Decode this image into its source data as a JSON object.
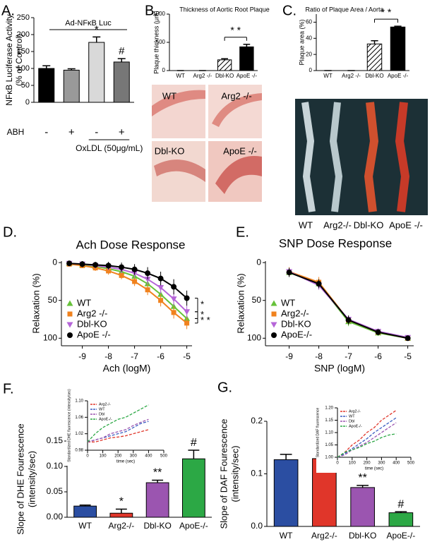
{
  "chart_data": [
    {
      "panel": "A.",
      "type": "bar",
      "title": "Ad-NFκB Luc",
      "ylabel": [
        "NFκB Luciferase Activity",
        "(% of Control)"
      ],
      "row_label": "ABH",
      "categories": [
        "-",
        "+",
        "-",
        "+"
      ],
      "group_label": "OxLDL (50μg/mL)",
      "values": [
        100,
        95,
        177,
        119
      ],
      "errors": [
        8,
        4,
        16,
        10
      ],
      "colors": [
        "#000000",
        "#999999",
        "#d9d9d9",
        "#777777"
      ],
      "annotations": [
        {
          "index": 2,
          "text": "*"
        },
        {
          "index": 3,
          "text": "#"
        }
      ],
      "ylim": [
        0,
        250
      ],
      "yticks": [
        0,
        50,
        100,
        150,
        200,
        250
      ]
    },
    {
      "panel": "B.",
      "type": "bar",
      "title": "Thickness of Aortic Root Plaque",
      "ylabel": [
        "Plaque thickness (μm)"
      ],
      "categories": [
        "WT",
        "Arg2 -/-",
        "Dbl-KO",
        "ApoE -/-"
      ],
      "values": [
        0,
        0,
        190,
        420
      ],
      "errors": [
        0,
        0,
        20,
        45
      ],
      "colors": [
        "#000000",
        "#000000",
        "#ffffff",
        "#000000"
      ],
      "hatch": [
        false,
        false,
        true,
        false
      ],
      "brackets": [
        {
          "from": 2,
          "to": 3,
          "text": "* *"
        }
      ],
      "ylim": [
        0,
        1000
      ],
      "yticks": [
        0,
        500,
        1000
      ],
      "image_labels": [
        "WT",
        "Arg2 -/-",
        "Dbl-KO",
        "ApoE -/-"
      ]
    },
    {
      "panel": "C.",
      "type": "bar",
      "title": "Ratio of Plaque Area / Aorta",
      "ylabel": [
        "Plaque area (%)"
      ],
      "categories": [
        "WT",
        "Arg2 -/-",
        "Dbl-KO",
        "ApoE -/-"
      ],
      "values": [
        0,
        0,
        33,
        54
      ],
      "errors": [
        0,
        0,
        4,
        1
      ],
      "colors": [
        "#000000",
        "#000000",
        "#ffffff",
        "#000000"
      ],
      "hatch": [
        false,
        false,
        true,
        false
      ],
      "brackets": [
        {
          "from": 2,
          "to": 3,
          "text": "* *"
        }
      ],
      "ylim": [
        0,
        70
      ],
      "yticks": [
        0,
        20,
        40,
        60
      ],
      "image_labels": [
        "WT",
        "Arg2-/-",
        "Dbl-KO",
        "ApoE -/-"
      ]
    },
    {
      "panel": "D.",
      "type": "line",
      "title": "Ach Dose Response",
      "xlabel": "Ach (logM)",
      "ylabel": [
        "Relaxation (%)"
      ],
      "x": [
        -9.5,
        -9,
        -8.5,
        -8,
        -7.5,
        -7,
        -6.5,
        -6,
        -5.5,
        -5
      ],
      "series": [
        {
          "name": "WT",
          "color": "#66c23a",
          "marker": "triangle-up",
          "values": [
            1,
            3,
            5,
            8,
            12,
            18,
            28,
            42,
            58,
            74
          ],
          "errors": [
            2,
            2,
            3,
            3,
            4,
            5,
            6,
            7,
            6,
            6
          ]
        },
        {
          "name": "Arg2 -/-",
          "color": "#f0821e",
          "marker": "square",
          "values": [
            2,
            4,
            7,
            11,
            17,
            25,
            36,
            50,
            66,
            80
          ],
          "errors": [
            2,
            3,
            4,
            5,
            5,
            6,
            7,
            8,
            8,
            8
          ]
        },
        {
          "name": "Dbl-KO",
          "color": "#b565d8",
          "marker": "triangle-down",
          "values": [
            1,
            2,
            4,
            6,
            9,
            14,
            22,
            33,
            48,
            65
          ],
          "errors": [
            2,
            3,
            3,
            4,
            5,
            6,
            7,
            8,
            9,
            8
          ]
        },
        {
          "name": "ApoE -/-",
          "color": "#000000",
          "marker": "circle",
          "values": [
            1,
            2,
            3,
            4,
            6,
            9,
            14,
            21,
            32,
            47
          ],
          "errors": [
            3,
            4,
            4,
            5,
            6,
            7,
            8,
            9,
            10,
            10
          ]
        }
      ],
      "significance": [
        "*",
        "*",
        "* *"
      ],
      "xlim": [
        -9.8,
        -4.8
      ],
      "xticks": [
        -9,
        -8,
        -7,
        -6,
        -5
      ],
      "ylim": [
        110,
        -2
      ],
      "yticks": [
        0,
        50,
        100
      ],
      "legend": "lower left"
    },
    {
      "panel": "E.",
      "type": "line",
      "title": "SNP Dose Response",
      "xlabel": "SNP (logM)",
      "ylabel": [
        "Relaxation (%)"
      ],
      "x": [
        -9,
        -8,
        -7,
        -6,
        -5
      ],
      "series": [
        {
          "name": "WT",
          "color": "#66c23a",
          "marker": "triangle-up",
          "values": [
            13,
            28,
            78,
            93,
            100
          ],
          "errors": [
            6,
            6,
            6,
            4,
            3
          ]
        },
        {
          "name": "Arg2-/-",
          "color": "#f0821e",
          "marker": "square",
          "values": [
            12,
            26,
            76,
            92,
            100
          ],
          "errors": [
            6,
            7,
            6,
            4,
            3
          ]
        },
        {
          "name": "Dbl-KO",
          "color": "#b565d8",
          "marker": "triangle-down",
          "values": [
            12,
            30,
            75,
            91,
            99
          ],
          "errors": [
            5,
            6,
            5,
            4,
            3
          ]
        },
        {
          "name": "ApoE-/-",
          "color": "#000000",
          "marker": "circle",
          "values": [
            13,
            28,
            76,
            92,
            100
          ],
          "errors": [
            6,
            6,
            6,
            4,
            3
          ]
        }
      ],
      "xlim": [
        -9.8,
        -4.8
      ],
      "xticks": [
        -9,
        -8,
        -7,
        -6,
        -5
      ],
      "ylim": [
        110,
        -2
      ],
      "yticks": [
        0,
        50,
        100
      ],
      "legend": "lower left"
    },
    {
      "panel": "F.",
      "type": "bar",
      "ylabel": [
        "Slope of DHE Fourescence",
        "(intensity/sec)"
      ],
      "categories": [
        "WT",
        "Arg2-/-",
        "Dbl-KO",
        "ApoE-/-"
      ],
      "values": [
        0.022,
        0.008,
        0.068,
        0.115
      ],
      "errors": [
        0.002,
        0.008,
        0.005,
        0.017
      ],
      "colors": [
        "#2b4ea2",
        "#e0362a",
        "#9b55b0",
        "#2ca845"
      ],
      "annotations": [
        {
          "index": 1,
          "text": "*"
        },
        {
          "index": 2,
          "text": "**"
        },
        {
          "index": 3,
          "text": "#"
        }
      ],
      "ylim": [
        0,
        0.15
      ],
      "yticks": [
        {
          "value": 0,
          "label": "0.00"
        },
        {
          "value": 0.05,
          "label": "0.05"
        },
        {
          "value": 0.1,
          "label": "0.10"
        },
        {
          "value": 0.15,
          "label": "0.15"
        }
      ]
    },
    {
      "type": "line",
      "xlabel": "time (sec)",
      "ylabel": [
        "Standardized DHE fluorescence (intensity/sec)"
      ],
      "line_style": "dashed",
      "x": [
        0,
        50,
        100,
        150,
        200,
        250,
        300,
        350,
        400
      ],
      "series": [
        {
          "name": "Arg2-/-",
          "color": "#e0362a",
          "values": [
            1.0,
            1.0,
            1.005,
            1.01,
            1.012,
            1.015,
            1.02,
            1.025,
            1.03
          ]
        },
        {
          "name": "WT",
          "color": "#3a5cc0",
          "values": [
            1.0,
            1.005,
            1.01,
            1.015,
            1.02,
            1.025,
            1.035,
            1.045,
            1.05
          ]
        },
        {
          "name": "Dbl",
          "color": "#9b55b0",
          "values": [
            1.0,
            1.005,
            1.01,
            1.02,
            1.025,
            1.03,
            1.04,
            1.048,
            1.055
          ]
        },
        {
          "name": "ApoE-/-",
          "color": "#2ca845",
          "values": [
            1.0,
            1.02,
            1.035,
            1.045,
            1.055,
            1.06,
            1.07,
            1.08,
            1.09
          ]
        }
      ],
      "xlim": [
        0,
        500
      ],
      "xticks": [
        0,
        100,
        200,
        300,
        400,
        500
      ],
      "ylim": [
        0.98,
        1.1
      ],
      "yticks": [
        0.98,
        1.02,
        1.06,
        {
          "value": 1.1,
          "label": "1.10"
        }
      ],
      "legend": "upper left"
    },
    {
      "panel": "G.",
      "type": "bar",
      "ylabel": [
        "Slope of DAF Fourescence",
        "(intensity/sec)"
      ],
      "categories": [
        "WT",
        "Arg2-/-",
        "Dbl-KO",
        "ApoE-/-"
      ],
      "values": [
        0.127,
        0.129,
        0.074,
        0.026
      ],
      "errors": [
        0.01,
        0.018,
        0.004,
        0.002
      ],
      "colors": [
        "#2b4ea2",
        "#e0362a",
        "#9b55b0",
        "#2ca845"
      ],
      "annotations": [
        {
          "index": 2,
          "text": "**"
        },
        {
          "index": 3,
          "text": "#"
        }
      ],
      "ylim": [
        0,
        0.2
      ],
      "yticks": [
        {
          "value": 0,
          "label": "0.0"
        },
        0.1,
        0.2
      ]
    },
    {
      "type": "line",
      "xlabel": "time (sec)",
      "ylabel": [
        "Standardized DAF fluorescence"
      ],
      "line_style": "dashed",
      "x": [
        0,
        50,
        100,
        150,
        200,
        250,
        300,
        350,
        400
      ],
      "series": [
        {
          "name": "Arg2-/-",
          "color": "#e0362a",
          "values": [
            1.0,
            1.02,
            1.05,
            1.07,
            1.1,
            1.12,
            1.15,
            1.17,
            1.19
          ]
        },
        {
          "name": "WT",
          "color": "#3a5cc0",
          "values": [
            1.0,
            1.015,
            1.035,
            1.055,
            1.075,
            1.1,
            1.12,
            1.14,
            1.16
          ]
        },
        {
          "name": "Dbl",
          "color": "#9b55b0",
          "values": [
            1.0,
            1.01,
            1.03,
            1.045,
            1.06,
            1.08,
            1.1,
            1.12,
            1.14
          ]
        },
        {
          "name": "ApoE-/-",
          "color": "#2ca845",
          "values": [
            1.0,
            1.02,
            1.03,
            1.04,
            1.055,
            1.065,
            1.08,
            1.09,
            1.095
          ]
        }
      ],
      "xlim": [
        0,
        500
      ],
      "xticks": [
        0,
        100,
        200,
        300,
        400,
        500
      ],
      "ylim": [
        1.0,
        1.2
      ],
      "yticks": [
        {
          "value": 1,
          "label": "1.00"
        },
        1.05,
        {
          "value": 1.1,
          "label": "1.10"
        },
        1.15,
        {
          "value": 1.2,
          "label": "1.20"
        }
      ],
      "legend": "upper left"
    }
  ]
}
